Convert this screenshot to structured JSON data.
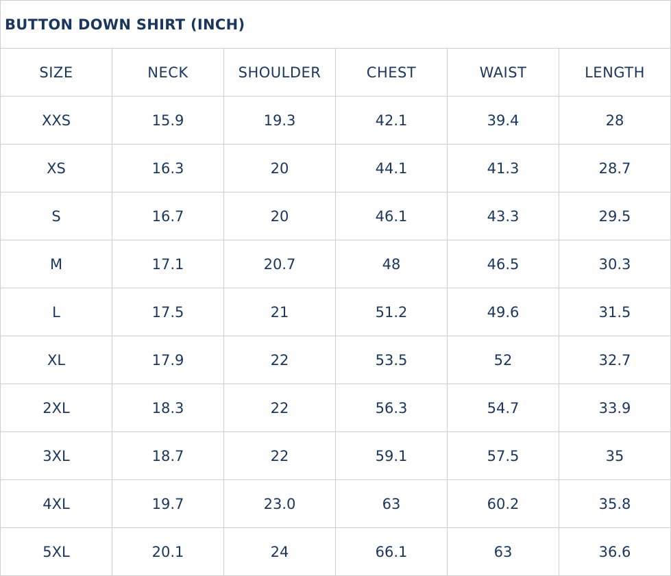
{
  "title": "BUTTON DOWN SHIRT (INCH)",
  "headers": [
    "SIZE",
    "NECK",
    "SHOULDER",
    "CHEST",
    "WAIST",
    "LENGTH"
  ],
  "rows": [
    [
      "XXS",
      "15.9",
      "19.3",
      "42.1",
      "39.4",
      "28"
    ],
    [
      "XS",
      "16.3",
      "20",
      "44.1",
      "41.3",
      "28.7"
    ],
    [
      "S",
      "16.7",
      "20",
      "46.1",
      "43.3",
      "29.5"
    ],
    [
      "M",
      "17.1",
      "20.7",
      "48",
      "46.5",
      "30.3"
    ],
    [
      "L",
      "17.5",
      "21",
      "51.2",
      "49.6",
      "31.5"
    ],
    [
      "XL",
      "17.9",
      "22",
      "53.5",
      "52",
      "32.7"
    ],
    [
      "2XL",
      "18.3",
      "22",
      "56.3",
      "54.7",
      "33.9"
    ],
    [
      "3XL",
      "18.7",
      "22",
      "59.1",
      "57.5",
      "35"
    ],
    [
      "4XL",
      "19.7",
      "23.0",
      "63",
      "60.2",
      "35.8"
    ],
    [
      "5XL",
      "20.1",
      "24",
      "66.1",
      "63",
      "36.6"
    ]
  ],
  "colors": {
    "text": "#1b365d",
    "border": "#cfcfcf"
  }
}
